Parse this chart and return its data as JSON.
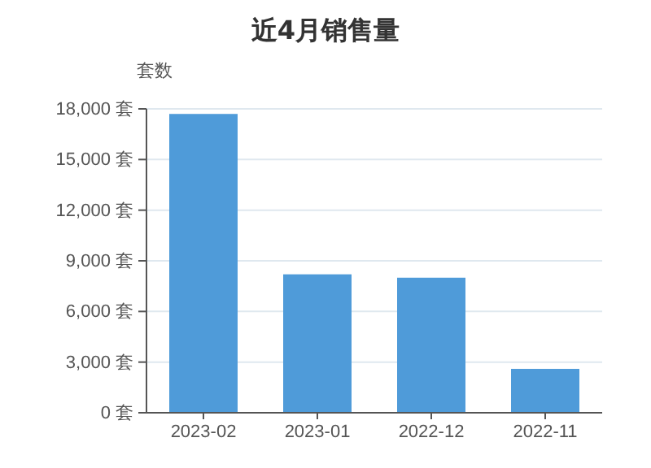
{
  "chart_data": {
    "type": "bar",
    "title": "近4月销售量",
    "ylabel": "套数",
    "categories": [
      "2023-02",
      "2023-01",
      "2022-12",
      "2022-11"
    ],
    "values": [
      17700,
      8200,
      8000,
      2600
    ],
    "color": "#4f9bd9",
    "ylim": [
      0,
      18000
    ],
    "yticks": [
      {
        "value": 0,
        "label": "0 套"
      },
      {
        "value": 3000,
        "label": "3,000 套"
      },
      {
        "value": 6000,
        "label": "6,000 套"
      },
      {
        "value": 9000,
        "label": "9,000 套"
      },
      {
        "value": 12000,
        "label": "12,000 套"
      },
      {
        "value": 15000,
        "label": "15,000 套"
      },
      {
        "value": 18000,
        "label": "18,000 套"
      }
    ],
    "grid": "y"
  }
}
